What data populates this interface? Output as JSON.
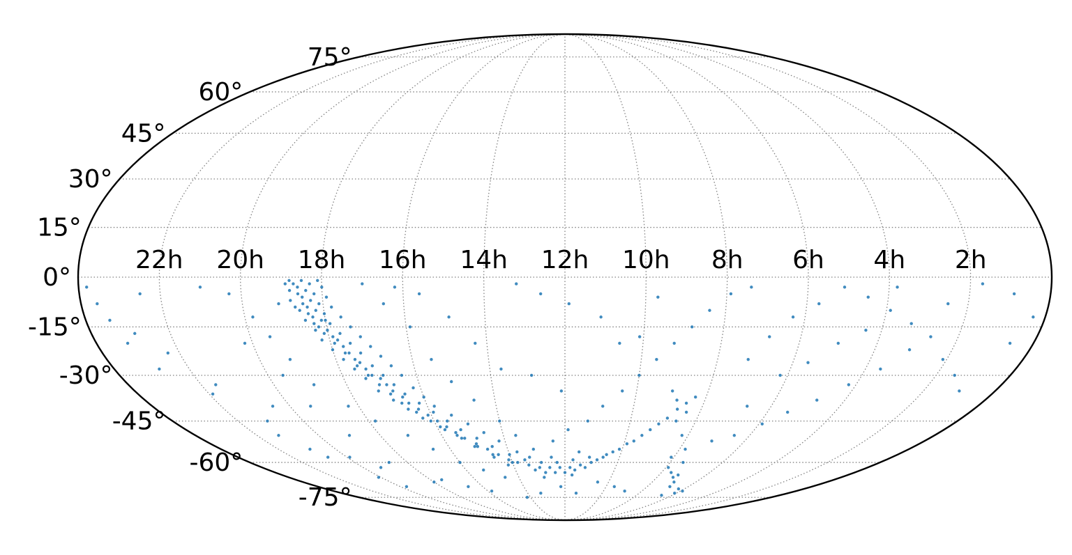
{
  "chart_data": {
    "type": "scatter",
    "projection": "mollweide",
    "title": "",
    "xlabel": "",
    "ylabel": "",
    "x_axis": {
      "quantity": "right ascension",
      "direction": "increasing to the left",
      "range_hours": [
        0,
        24
      ],
      "ticks": [
        {
          "value": 22,
          "label": "22h"
        },
        {
          "value": 20,
          "label": "20h"
        },
        {
          "value": 18,
          "label": "18h"
        },
        {
          "value": 16,
          "label": "16h"
        },
        {
          "value": 14,
          "label": "14h"
        },
        {
          "value": 12,
          "label": "12h"
        },
        {
          "value": 10,
          "label": "10h"
        },
        {
          "value": 8,
          "label": "8h"
        },
        {
          "value": 6,
          "label": "6h"
        },
        {
          "value": 4,
          "label": "4h"
        },
        {
          "value": 2,
          "label": "2h"
        }
      ]
    },
    "y_axis": {
      "quantity": "declination",
      "range_deg": [
        -90,
        90
      ],
      "ticks": [
        {
          "value": 75,
          "label": "75°"
        },
        {
          "value": 60,
          "label": "60°"
        },
        {
          "value": 45,
          "label": "45°"
        },
        {
          "value": 30,
          "label": "30°"
        },
        {
          "value": 15,
          "label": "15°"
        },
        {
          "value": 0,
          "label": "0°"
        },
        {
          "value": -15,
          "label": "-15°"
        },
        {
          "value": -30,
          "label": "-30°"
        },
        {
          "value": -45,
          "label": "-45°"
        },
        {
          "value": -60,
          "label": "-60°"
        },
        {
          "value": -75,
          "label": "-75°"
        }
      ]
    },
    "grid": true,
    "legend": "none",
    "point_color": "#1f77b4",
    "series": [
      {
        "points": [
          [
            18.5,
            -1
          ],
          [
            18.6,
            -3
          ],
          [
            18.4,
            -4
          ],
          [
            18.5,
            -6
          ],
          [
            18.3,
            -7
          ],
          [
            18.4,
            -9
          ],
          [
            18.2,
            -10
          ],
          [
            18.3,
            -12
          ],
          [
            18.1,
            -13
          ],
          [
            18.2,
            -15
          ],
          [
            18.0,
            -16
          ],
          [
            17.9,
            -18
          ],
          [
            17.8,
            -19
          ],
          [
            17.7,
            -21
          ],
          [
            17.6,
            -23
          ],
          [
            17.5,
            -25
          ],
          [
            17.4,
            -26
          ],
          [
            17.3,
            -28
          ],
          [
            17.2,
            -30
          ],
          [
            17.0,
            -31
          ],
          [
            16.9,
            -33
          ],
          [
            16.8,
            -35
          ],
          [
            16.6,
            -37
          ],
          [
            16.5,
            -39
          ],
          [
            16.3,
            -41
          ],
          [
            16.1,
            -43
          ],
          [
            15.9,
            -45
          ],
          [
            15.7,
            -47
          ],
          [
            15.5,
            -49
          ],
          [
            15.3,
            -51
          ],
          [
            15.0,
            -53
          ],
          [
            14.7,
            -55
          ],
          [
            14.4,
            -57
          ],
          [
            14.1,
            -59
          ],
          [
            13.8,
            -60
          ],
          [
            13.4,
            -61
          ],
          [
            13.0,
            -62
          ],
          [
            12.6,
            -62
          ],
          [
            12.2,
            -62
          ],
          [
            11.8,
            -62
          ],
          [
            11.4,
            -61
          ],
          [
            11.0,
            -60
          ],
          [
            10.8,
            -59
          ],
          [
            10.6,
            -58
          ],
          [
            10.5,
            -57
          ],
          [
            10.3,
            -56
          ],
          [
            10.1,
            -55
          ],
          [
            9.9,
            -53
          ],
          [
            9.7,
            -52
          ],
          [
            9.5,
            -50
          ],
          [
            9.3,
            -48
          ],
          [
            9.1,
            -46
          ],
          [
            8.9,
            -44
          ],
          [
            8.7,
            -41
          ],
          [
            8.5,
            -39
          ],
          [
            8.3,
            -37
          ],
          [
            18.7,
            -2
          ],
          [
            18.3,
            -2
          ],
          [
            18.6,
            -5
          ],
          [
            18.2,
            -5
          ],
          [
            18.5,
            -8
          ],
          [
            18.1,
            -8
          ],
          [
            18.4,
            -11
          ],
          [
            18.0,
            -11
          ],
          [
            18.3,
            -14
          ],
          [
            17.9,
            -14
          ],
          [
            18.1,
            -17
          ],
          [
            17.7,
            -17
          ],
          [
            17.9,
            -20
          ],
          [
            17.5,
            -20
          ],
          [
            17.7,
            -23
          ],
          [
            17.3,
            -23
          ],
          [
            17.5,
            -27
          ],
          [
            17.1,
            -27
          ],
          [
            17.3,
            -30
          ],
          [
            16.9,
            -30
          ],
          [
            17.1,
            -33
          ],
          [
            16.7,
            -33
          ],
          [
            16.9,
            -36
          ],
          [
            16.5,
            -36
          ],
          [
            16.7,
            -39
          ],
          [
            16.2,
            -39
          ],
          [
            16.4,
            -42
          ],
          [
            15.9,
            -42
          ],
          [
            16.1,
            -45
          ],
          [
            15.6,
            -45
          ],
          [
            15.8,
            -48
          ],
          [
            15.3,
            -48
          ],
          [
            15.4,
            -51
          ],
          [
            14.9,
            -51
          ],
          [
            15.0,
            -54
          ],
          [
            14.5,
            -54
          ],
          [
            14.6,
            -57
          ],
          [
            14.0,
            -57
          ],
          [
            14.0,
            -60
          ],
          [
            13.5,
            -59
          ],
          [
            13.2,
            -63
          ],
          [
            12.8,
            -64
          ],
          [
            12.4,
            -64
          ],
          [
            12.0,
            -64
          ],
          [
            11.6,
            -63
          ],
          [
            11.2,
            -62
          ],
          [
            12.9,
            -60
          ],
          [
            12.3,
            -60
          ],
          [
            11.7,
            -59
          ],
          [
            11.1,
            -58
          ],
          [
            18.8,
            -4
          ],
          [
            18.0,
            -3
          ],
          [
            18.8,
            -7
          ],
          [
            17.9,
            -6
          ],
          [
            18.6,
            -10
          ],
          [
            17.8,
            -9
          ],
          [
            18.5,
            -13
          ],
          [
            17.6,
            -12
          ],
          [
            18.3,
            -16
          ],
          [
            17.4,
            -15
          ],
          [
            18.2,
            -19
          ],
          [
            17.2,
            -18
          ],
          [
            18.0,
            -22
          ],
          [
            17.0,
            -21
          ],
          [
            17.8,
            -25
          ],
          [
            16.8,
            -24
          ],
          [
            17.6,
            -28
          ],
          [
            16.6,
            -27
          ],
          [
            17.4,
            -31
          ],
          [
            16.4,
            -30
          ],
          [
            17.2,
            -35
          ],
          [
            16.2,
            -34
          ],
          [
            16.9,
            -38
          ],
          [
            16.0,
            -37
          ],
          [
            16.6,
            -41
          ],
          [
            15.8,
            -40
          ],
          [
            16.3,
            -44
          ],
          [
            15.4,
            -43
          ],
          [
            15.9,
            -47
          ],
          [
            15.0,
            -46
          ],
          [
            15.5,
            -50
          ],
          [
            14.6,
            -49
          ],
          [
            15.1,
            -54
          ],
          [
            14.2,
            -52
          ],
          [
            14.6,
            -58
          ],
          [
            13.7,
            -56
          ],
          [
            14.2,
            -61
          ],
          [
            13.3,
            -58
          ],
          [
            12.5,
            -58
          ],
          [
            11.5,
            -56
          ],
          [
            21.0,
            -3
          ],
          [
            22.5,
            -5
          ],
          [
            23.6,
            -8
          ],
          [
            23.2,
            -20
          ],
          [
            22.8,
            -28
          ],
          [
            21.6,
            -33
          ],
          [
            20.5,
            -40
          ],
          [
            21.1,
            -45
          ],
          [
            20.9,
            -55
          ],
          [
            19.9,
            -58
          ],
          [
            20.1,
            -66
          ],
          [
            19.3,
            -62
          ],
          [
            19.6,
            -30
          ],
          [
            20.2,
            -20
          ],
          [
            19.8,
            -12
          ],
          [
            20.3,
            -5
          ],
          [
            19.4,
            -40
          ],
          [
            19.0,
            -50
          ],
          [
            18.7,
            -60
          ],
          [
            18.0,
            -68
          ],
          [
            16.5,
            -8
          ],
          [
            15.9,
            -15
          ],
          [
            15.5,
            -25
          ],
          [
            15.1,
            -32
          ],
          [
            14.6,
            -38
          ],
          [
            14.0,
            -45
          ],
          [
            13.6,
            -50
          ],
          [
            13.1,
            -55
          ],
          [
            12.4,
            -52
          ],
          [
            11.9,
            -48
          ],
          [
            11.3,
            -45
          ],
          [
            10.9,
            -40
          ],
          [
            10.4,
            -35
          ],
          [
            10.0,
            -30
          ],
          [
            9.6,
            -25
          ],
          [
            9.2,
            -20
          ],
          [
            8.8,
            -15
          ],
          [
            8.4,
            -10
          ],
          [
            7.9,
            -5
          ],
          [
            7.4,
            -3
          ],
          [
            13.2,
            -2
          ],
          [
            12.6,
            -5
          ],
          [
            11.9,
            -8
          ],
          [
            11.1,
            -12
          ],
          [
            10.6,
            -20
          ],
          [
            10.1,
            -18
          ],
          [
            9.7,
            -6
          ],
          [
            12.9,
            -30
          ],
          [
            12.1,
            -35
          ],
          [
            13.7,
            -28
          ],
          [
            14.3,
            -20
          ],
          [
            14.9,
            -12
          ],
          [
            15.6,
            -5
          ],
          [
            16.2,
            -3
          ],
          [
            17.0,
            -2
          ],
          [
            9.0,
            -35
          ],
          [
            8.6,
            -45
          ],
          [
            8.2,
            -50
          ],
          [
            7.8,
            -55
          ],
          [
            7.5,
            -60
          ],
          [
            7.2,
            -65
          ],
          [
            7.0,
            -68
          ],
          [
            7.3,
            -66
          ],
          [
            7.6,
            -64
          ],
          [
            5.9,
            -72
          ],
          [
            6.1,
            -73
          ],
          [
            6.3,
            -71
          ],
          [
            6.6,
            -74
          ],
          [
            6.9,
            -70
          ],
          [
            7.9,
            -62
          ],
          [
            8.1,
            -58
          ],
          [
            8.4,
            -42
          ],
          [
            8.8,
            -38
          ],
          [
            7.2,
            -25
          ],
          [
            6.8,
            -18
          ],
          [
            6.3,
            -12
          ],
          [
            5.7,
            -8
          ],
          [
            5.1,
            -3
          ],
          [
            4.5,
            -6
          ],
          [
            3.9,
            -10
          ],
          [
            3.3,
            -14
          ],
          [
            2.7,
            -18
          ],
          [
            2.1,
            -25
          ],
          [
            1.5,
            -30
          ],
          [
            1.0,
            -35
          ],
          [
            0.6,
            -20
          ],
          [
            0.3,
            -12
          ],
          [
            0.9,
            -5
          ],
          [
            1.7,
            -2
          ],
          [
            2.5,
            -8
          ],
          [
            3.1,
            -22
          ],
          [
            3.6,
            -28
          ],
          [
            4.2,
            -33
          ],
          [
            4.8,
            -38
          ],
          [
            5.4,
            -42
          ],
          [
            5.9,
            -46
          ],
          [
            6.5,
            -50
          ],
          [
            7.1,
            -52
          ],
          [
            6.7,
            -40
          ],
          [
            6.2,
            -30
          ],
          [
            5.6,
            -26
          ],
          [
            5.0,
            -20
          ],
          [
            4.4,
            -16
          ],
          [
            3.8,
            -3
          ],
          [
            23.8,
            -3
          ],
          [
            23.4,
            -13
          ],
          [
            22.9,
            -17
          ],
          [
            22.3,
            -23
          ],
          [
            21.9,
            -36
          ],
          [
            21.3,
            -50
          ],
          [
            20.7,
            -58
          ],
          [
            19.7,
            -70
          ],
          [
            17.5,
            -67
          ],
          [
            16.7,
            -70
          ],
          [
            15.8,
            -72
          ],
          [
            14.2,
            -75
          ],
          [
            13.3,
            -73
          ],
          [
            12.2,
            -70
          ],
          [
            11.4,
            -73
          ],
          [
            10.5,
            -68
          ],
          [
            9.6,
            -70
          ],
          [
            8.9,
            -72
          ],
          [
            11.7,
            -65
          ],
          [
            12.9,
            -66
          ],
          [
            14.6,
            -66
          ],
          [
            15.3,
            -63
          ],
          [
            16.0,
            -60
          ],
          [
            16.6,
            -55
          ],
          [
            17.1,
            -50
          ],
          [
            17.8,
            -45
          ],
          [
            18.3,
            -40
          ],
          [
            18.9,
            -33
          ],
          [
            19.2,
            -25
          ],
          [
            19.5,
            -18
          ],
          [
            19.1,
            -8
          ],
          [
            18.8,
            -1
          ],
          [
            18.9,
            -2
          ],
          [
            18.1,
            -1
          ],
          [
            18.7,
            -9
          ],
          [
            18.0,
            -13
          ]
        ]
      }
    ]
  }
}
